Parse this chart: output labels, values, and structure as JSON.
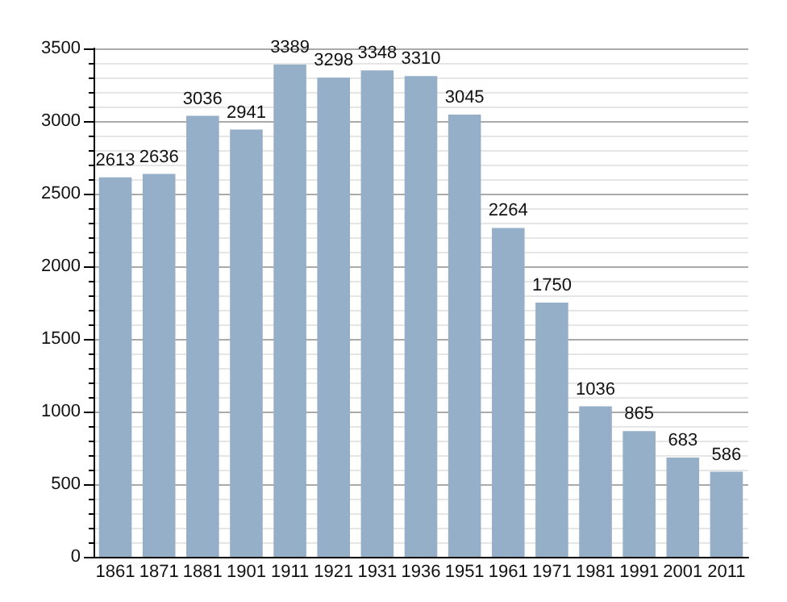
{
  "chart_data": {
    "type": "bar",
    "categories": [
      "1861",
      "1871",
      "1881",
      "1901",
      "1911",
      "1921",
      "1931",
      "1936",
      "1951",
      "1961",
      "1971",
      "1981",
      "1991",
      "2001",
      "2011"
    ],
    "values": [
      2613,
      2636,
      3036,
      2941,
      3389,
      3298,
      3348,
      3310,
      3045,
      2264,
      1750,
      1036,
      865,
      683,
      586
    ],
    "color": "#95afc9",
    "ylim": [
      0,
      3500
    ],
    "yticks": [
      0,
      500,
      1000,
      1500,
      2000,
      2500,
      3000,
      3500
    ],
    "grid": "y",
    "data_labels": true
  }
}
